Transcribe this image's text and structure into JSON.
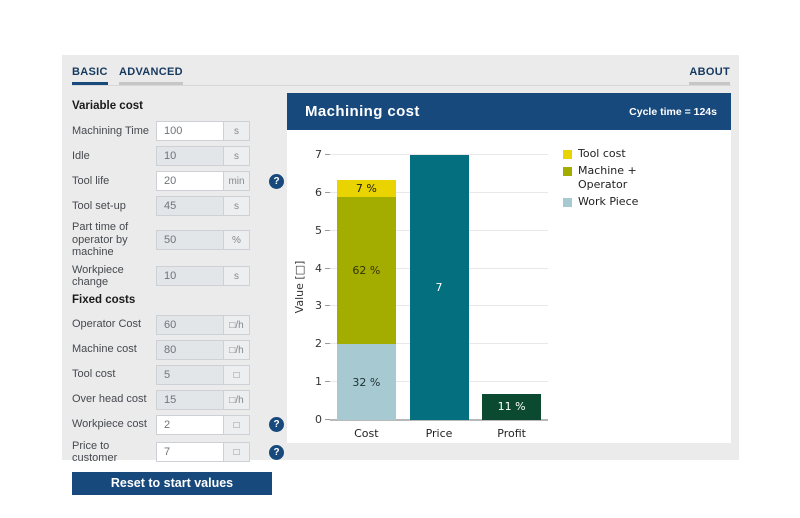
{
  "tabs": {
    "basic": "BASIC",
    "advanced": "ADVANCED",
    "about": "ABOUT"
  },
  "sidebar": {
    "help_glyph": "?",
    "variable_cost_header": "Variable cost",
    "fixed_costs_header": "Fixed costs",
    "rows": [
      {
        "label": "Machining Time",
        "value": "100",
        "unit": "s",
        "editable": true,
        "help": false
      },
      {
        "label": "Idle",
        "value": "10",
        "unit": "s",
        "editable": false,
        "help": false
      },
      {
        "label": "Tool life",
        "value": "20",
        "unit": "min",
        "editable": true,
        "help": true
      },
      {
        "label": "Tool set-up",
        "value": "45",
        "unit": "s",
        "editable": false,
        "help": false
      },
      {
        "label": "Part time of operator by machine",
        "value": "50",
        "unit": "%",
        "editable": false,
        "help": false
      },
      {
        "label": "Workpiece change",
        "value": "10",
        "unit": "s",
        "editable": false,
        "help": false
      },
      {
        "label": "Operator Cost",
        "value": "60",
        "unit": "□/h",
        "editable": false,
        "help": false
      },
      {
        "label": "Machine cost",
        "value": "80",
        "unit": "□/h",
        "editable": false,
        "help": false
      },
      {
        "label": "Tool cost",
        "value": "5",
        "unit": "□",
        "editable": false,
        "help": false
      },
      {
        "label": "Over head cost",
        "value": "15",
        "unit": "□/h",
        "editable": false,
        "help": false
      },
      {
        "label": "Workpiece cost",
        "value": "2",
        "unit": "□",
        "editable": true,
        "help": true
      },
      {
        "label": "Price to customer",
        "value": "7",
        "unit": "□",
        "editable": true,
        "help": true
      }
    ],
    "reset_button": "Reset to start values"
  },
  "chart": {
    "header": "Machining cost",
    "cycle_time": "Cycle time = 124s"
  },
  "theme": {
    "navy": "#17497D",
    "panel_bg": "#EBEBEB",
    "teal": "#04707F",
    "yellow": "#E9D300",
    "olive": "#A3AD00",
    "light_blue": "#A7C9D1",
    "dark_green": "#0B4A31"
  },
  "chart_data": {
    "type": "bar",
    "title": "Machining cost",
    "ylabel": "Value [□]",
    "ylim": [
      0,
      7
    ],
    "yticks": [
      0,
      1,
      2,
      3,
      4,
      5,
      6,
      7
    ],
    "grid": true,
    "legend_position": "upper right",
    "categories": [
      "Cost",
      "Price",
      "Profit"
    ],
    "legend": [
      {
        "label": "Tool cost",
        "color": "#E9D300"
      },
      {
        "label": "Machine + Operator",
        "color": "#A3AD00"
      },
      {
        "label": "Work Piece",
        "color": "#A7C9D1"
      }
    ],
    "bars": [
      {
        "category": "Cost",
        "total": 6.3,
        "segments": [
          {
            "name": "Work Piece",
            "value": 2.0,
            "label": "32 %",
            "color": "#A7C9D1",
            "label_color": "#1F2F33"
          },
          {
            "name": "Machine + Operator",
            "value": 3.9,
            "label": "62 %",
            "color": "#A3AD00",
            "label_color": "#333300"
          },
          {
            "name": "Tool cost",
            "value": 0.44,
            "label": "7 %",
            "color": "#E9D300",
            "label_color": "#1A1A1A"
          }
        ]
      },
      {
        "category": "Price",
        "total": 7,
        "segments": [
          {
            "name": "Price",
            "value": 7,
            "label": "7",
            "color": "#04707F",
            "label_color": "#FFFFFF"
          }
        ]
      },
      {
        "category": "Profit",
        "total": 0.7,
        "segments": [
          {
            "name": "Profit",
            "value": 0.7,
            "label": "11 %",
            "color": "#0B4A31",
            "label_color": "#FFFFFF"
          }
        ]
      }
    ]
  }
}
